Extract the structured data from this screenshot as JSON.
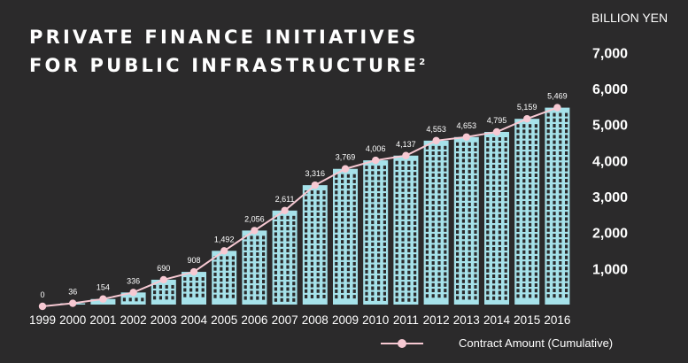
{
  "title": {
    "line1": "PRIVATE FINANCE INITIATIVES",
    "line2": "FOR PUBLIC INFRASTRUCTURE",
    "footnote": "2"
  },
  "unit_label": "BILLION YEN",
  "legend": {
    "label": "Contract Amount (Cumulative)"
  },
  "colors": {
    "background": "#2b2a2b",
    "building": "#a6e2ea",
    "window": "#2b2a2b",
    "line": "#f7c9d3",
    "text": "#ffffff"
  },
  "chart_data": {
    "type": "bar",
    "categories": [
      "1999",
      "2000",
      "2001",
      "2002",
      "2003",
      "2004",
      "2005",
      "2006",
      "2007",
      "2008",
      "2009",
      "2010",
      "2011",
      "2012",
      "2013",
      "2014",
      "2015",
      "2016"
    ],
    "values": [
      0,
      36,
      154,
      336,
      690,
      908,
      1492,
      2056,
      2611,
      3316,
      3769,
      4006,
      4137,
      4553,
      4653,
      4795,
      5159,
      5469
    ],
    "data_labels": [
      "0",
      "36",
      "154",
      "336",
      "690",
      "908",
      "1,492",
      "2,056",
      "2,611",
      "3,316",
      "3,769",
      "4,006",
      "4,137",
      "4,553",
      "4,653",
      "4,795",
      "5,159",
      "5,469"
    ],
    "overlay_line": "Contract Amount (Cumulative)",
    "ylabel": "BILLION YEN",
    "yticks": [
      1000,
      2000,
      3000,
      4000,
      5000,
      6000,
      7000
    ],
    "ytick_labels": [
      "1,000",
      "2,000",
      "3,000",
      "4,000",
      "5,000",
      "6,000",
      "7,000"
    ],
    "grid": false,
    "legend_position": "bottom-right"
  }
}
